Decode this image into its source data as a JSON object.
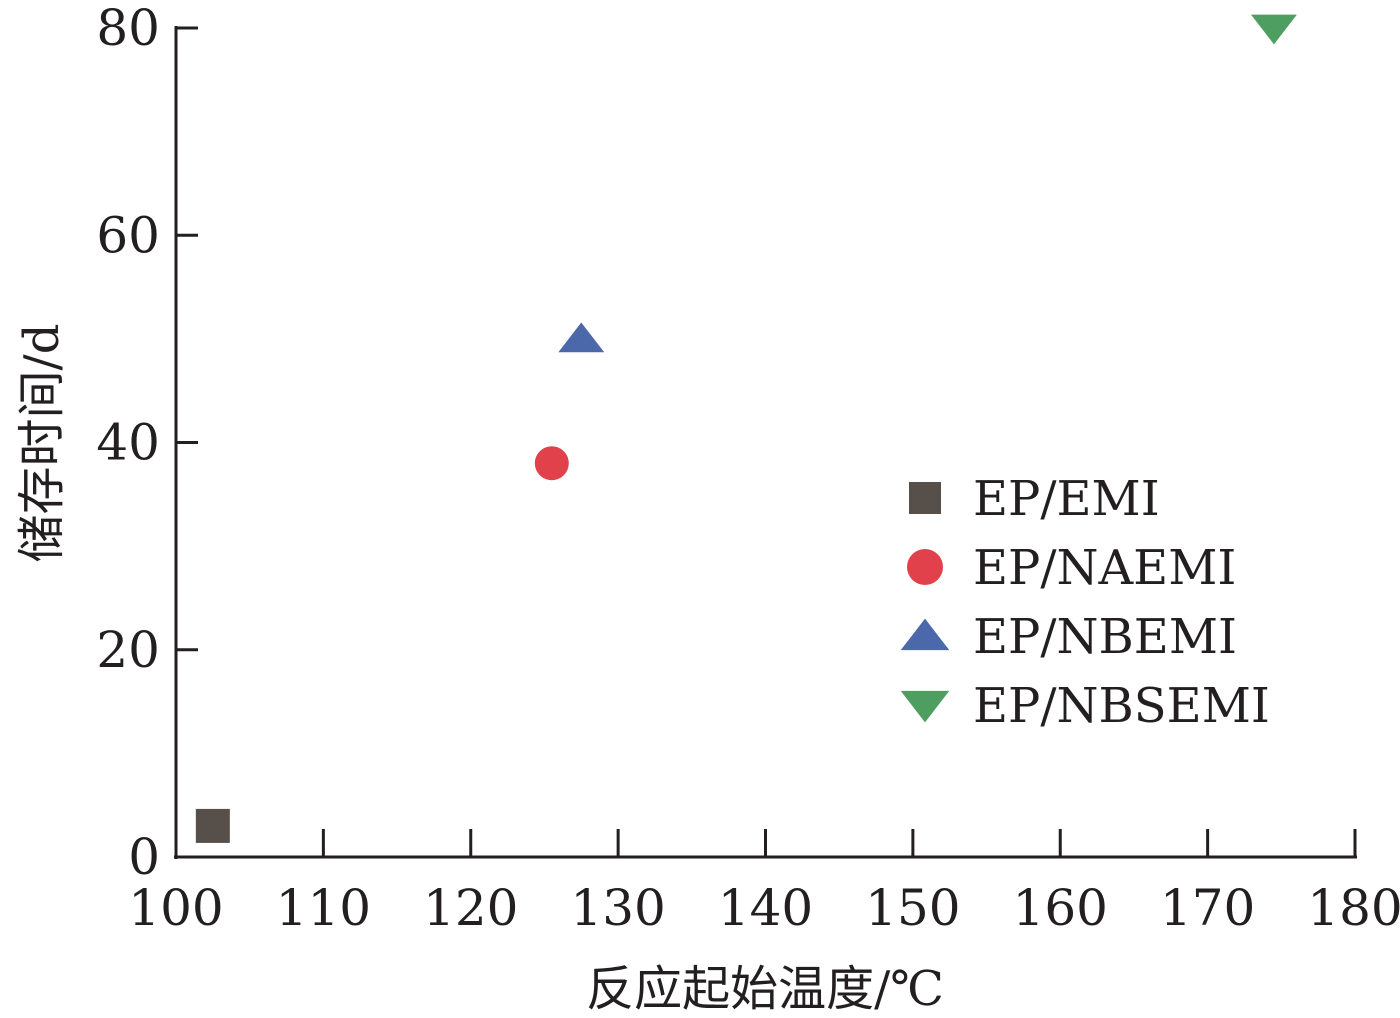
{
  "chart_data": {
    "type": "scatter",
    "title": "",
    "xlabel": "反应起始温度/℃",
    "ylabel": "储存时间/d",
    "xlim": [
      100,
      180
    ],
    "ylim": [
      0,
      80
    ],
    "x_ticks": [
      100,
      110,
      120,
      130,
      140,
      150,
      160,
      170,
      180
    ],
    "y_ticks": [
      0,
      20,
      40,
      60,
      80
    ],
    "grid": false,
    "legend_position": "right",
    "series": [
      {
        "name": "EP/EMI",
        "marker": "square",
        "color": "#574f4a",
        "points": [
          {
            "x": 102.5,
            "y": 3
          }
        ]
      },
      {
        "name": "EP/NAEMI",
        "marker": "circle",
        "color": "#e0414a",
        "points": [
          {
            "x": 125.5,
            "y": 38
          }
        ]
      },
      {
        "name": "EP/NBEMI",
        "marker": "triangle-up",
        "color": "#4a68aa",
        "points": [
          {
            "x": 127.5,
            "y": 50
          }
        ]
      },
      {
        "name": "EP/NBSEMI",
        "marker": "triangle-down",
        "color": "#4e9e62",
        "points": [
          {
            "x": 174.5,
            "y": 80
          }
        ]
      }
    ]
  }
}
